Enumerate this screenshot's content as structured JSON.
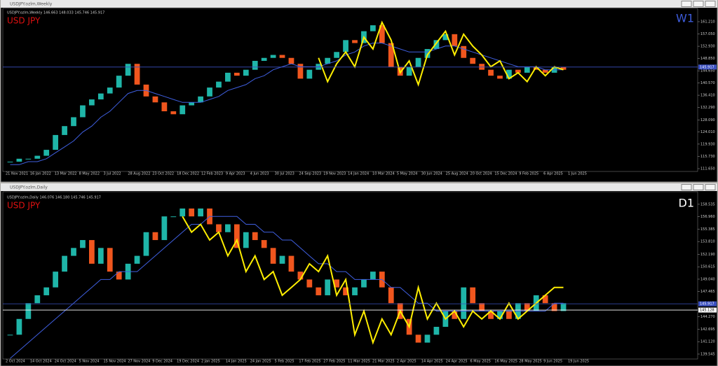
{
  "chart_data": [
    {
      "type": "candlestick",
      "window_title": "USDJPY.ozlm,Weekly",
      "header": "USDJPY.ozlm,Weekly 146.663 148.033 145.746 145.917",
      "symbol_label": "USD JPY",
      "timeframe_label": "W1",
      "timeframe_color": "#3d5bd9",
      "up_color": "#1fb5a8",
      "down_color": "#f0561e",
      "ma_color": "#3f5fe0",
      "zigzag_color": "#ffee00",
      "ylim": [
        111.18,
        165.22
      ],
      "yticks": [
        {
          "value": 161.21,
          "label": "161.210"
        },
        {
          "value": 157.05,
          "label": "157.050"
        },
        {
          "value": 152.93,
          "label": "152.930"
        },
        {
          "value": 148.85,
          "label": "148.850"
        },
        {
          "value": 144.65,
          "label": "144.650"
        },
        {
          "value": 140.57,
          "label": "140.570"
        },
        {
          "value": 136.41,
          "label": "136.410"
        },
        {
          "value": 132.29,
          "label": "132.290"
        },
        {
          "value": 128.09,
          "label": "128.090"
        },
        {
          "value": 124.01,
          "label": "124.010"
        },
        {
          "value": 119.93,
          "label": "119.930"
        },
        {
          "value": 115.73,
          "label": "115.730"
        },
        {
          "value": 111.65,
          "label": "111.650"
        }
      ],
      "date_labels": [
        "21 Nov 2021",
        "16 Jan 2022",
        "13 Mar 2022",
        "8 May 2022",
        "3 Jul 2022",
        "28 Aug 2022",
        "23 Oct 2022",
        "18 Dec 2022",
        "12 Feb 2023",
        "9 Apr 2023",
        "4 Jun 2023",
        "30 Jul 2023",
        "24 Sep 2023",
        "19 Nov 2023",
        "14 Jan 2024",
        "10 Mar 2024",
        "5 May 2024",
        "30 Jun 2024",
        "25 Aug 2024",
        "20 Oct 2024",
        "15 Dec 2024",
        "9 Feb 2025",
        "6 Apr 2025",
        "1 Jun 2025"
      ],
      "price_lines": [
        {
          "value": 145.917,
          "label": "145.917",
          "color": "#3a4fc0"
        }
      ],
      "values": [
        114,
        115,
        115,
        116,
        118,
        123,
        126,
        129,
        133,
        135,
        137,
        139,
        143,
        147,
        140,
        136,
        134,
        131,
        130,
        133,
        134,
        136,
        139,
        141,
        144,
        143,
        145,
        148,
        149,
        150,
        149,
        147,
        142,
        145,
        147,
        149,
        151,
        155,
        154,
        158,
        160,
        154,
        146,
        143,
        146,
        149,
        152,
        155,
        157,
        153,
        149,
        147,
        145,
        143,
        142,
        145,
        144,
        146,
        145,
        144,
        146,
        145
      ],
      "ma": [
        113,
        113,
        114,
        114,
        115,
        117,
        119,
        121,
        124,
        126,
        129,
        131,
        134,
        137,
        138,
        138,
        137,
        136,
        135,
        134,
        134,
        134,
        135,
        136,
        138,
        139,
        140,
        142,
        143,
        145,
        146,
        147,
        146,
        146,
        146,
        147,
        148,
        150,
        151,
        153,
        154,
        154,
        153,
        152,
        151,
        151,
        151,
        152,
        153,
        153,
        152,
        151,
        150,
        149,
        148,
        147,
        146,
        146,
        146,
        145,
        145,
        145
      ],
      "zigzag": [
        null,
        null,
        null,
        null,
        null,
        null,
        null,
        null,
        null,
        null,
        null,
        null,
        null,
        null,
        null,
        null,
        null,
        null,
        null,
        null,
        null,
        null,
        null,
        null,
        null,
        null,
        null,
        null,
        null,
        null,
        null,
        null,
        null,
        null,
        149,
        141,
        147,
        151,
        146,
        156,
        152,
        161,
        155,
        144,
        148,
        140,
        150,
        154,
        158,
        150,
        157,
        153,
        150,
        146,
        148,
        142,
        144,
        141,
        146,
        143,
        146,
        145
      ]
    },
    {
      "type": "candlestick",
      "window_title": "USDJPY.ozlm,Daily",
      "header": "USDJPY.ozlm,Daily 146.076 146.180 145.746 145.917",
      "symbol_label": "USD JPY",
      "timeframe_label": "D1",
      "timeframe_color": "#ffffff",
      "up_color": "#1fb5a8",
      "down_color": "#f0561e",
      "ma_color": "#3f5fe0",
      "zigzag_color": "#ffee00",
      "ylim": [
        139.1,
        159.77
      ],
      "yticks": [
        {
          "value": 158.535,
          "label": "158.535"
        },
        {
          "value": 156.96,
          "label": "156.960"
        },
        {
          "value": 155.385,
          "label": "155.385"
        },
        {
          "value": 153.81,
          "label": "153.810"
        },
        {
          "value": 152.19,
          "label": "152.190"
        },
        {
          "value": 150.615,
          "label": "150.615"
        },
        {
          "value": 149.04,
          "label": "149.040"
        },
        {
          "value": 147.465,
          "label": "147.465"
        },
        {
          "value": 144.27,
          "label": "144.270"
        },
        {
          "value": 142.695,
          "label": "142.695"
        },
        {
          "value": 141.12,
          "label": "141.120"
        },
        {
          "value": 139.545,
          "label": "139.545"
        }
      ],
      "date_labels": [
        "2 Oct 2024",
        "14 Oct 2024",
        "24 Oct 2024",
        "5 Nov 2024",
        "15 Nov 2024",
        "27 Nov 2024",
        "9 Dec 2024",
        "19 Dec 2024",
        "2 Jan 2025",
        "14 Jan 2025",
        "24 Jan 2025",
        "5 Feb 2025",
        "17 Feb 2025",
        "27 Feb 2025",
        "11 Mar 2025",
        "21 Mar 2025",
        "2 Apr 2025",
        "14 Apr 2025",
        "24 Apr 2025",
        "6 May 2025",
        "16 May 2025",
        "28 May 2025",
        "9 Jun 2025",
        "19 Jun 2025"
      ],
      "price_lines": [
        {
          "value": 145.917,
          "label": "145.917",
          "color": "#3a4fc0"
        },
        {
          "value": 145.128,
          "label": "145.128",
          "color": "#ffffff"
        }
      ],
      "values": [
        142,
        144,
        146,
        147,
        148,
        150,
        152,
        153,
        154,
        151,
        153,
        150,
        149,
        151,
        152,
        155,
        154,
        157,
        157,
        158,
        157,
        158,
        156,
        155,
        156,
        153,
        155,
        154,
        153,
        151,
        152,
        150,
        149,
        148,
        147,
        149,
        148,
        147,
        148,
        149,
        150,
        148,
        146,
        144,
        142,
        141,
        142,
        143,
        145,
        144,
        148,
        146,
        145,
        144,
        145,
        144,
        146,
        145,
        147,
        146,
        145,
        146
      ],
      "ma": [
        139,
        140,
        141,
        142,
        143,
        144,
        145,
        146,
        147,
        148,
        149,
        149,
        150,
        150,
        150,
        151,
        152,
        153,
        154,
        155,
        156,
        156,
        157,
        157,
        157,
        157,
        156,
        156,
        155,
        155,
        154,
        154,
        153,
        152,
        151,
        151,
        150,
        150,
        149,
        149,
        149,
        149,
        148,
        148,
        147,
        146,
        146,
        145,
        145,
        145,
        145,
        145,
        145,
        145,
        145,
        145,
        145,
        145,
        145,
        145,
        146,
        146
      ],
      "zigzag": [
        null,
        null,
        null,
        null,
        null,
        null,
        null,
        null,
        null,
        null,
        null,
        null,
        null,
        null,
        null,
        null,
        null,
        null,
        null,
        157,
        155,
        156,
        154,
        155,
        152,
        154,
        150,
        152,
        149,
        150,
        147,
        148,
        149,
        151,
        150,
        152,
        147,
        149,
        142,
        145,
        141,
        144,
        142,
        145,
        143,
        148,
        144,
        146,
        144,
        145,
        143,
        145,
        144,
        145,
        144,
        146,
        144,
        145,
        146,
        147,
        148,
        148
      ]
    }
  ]
}
